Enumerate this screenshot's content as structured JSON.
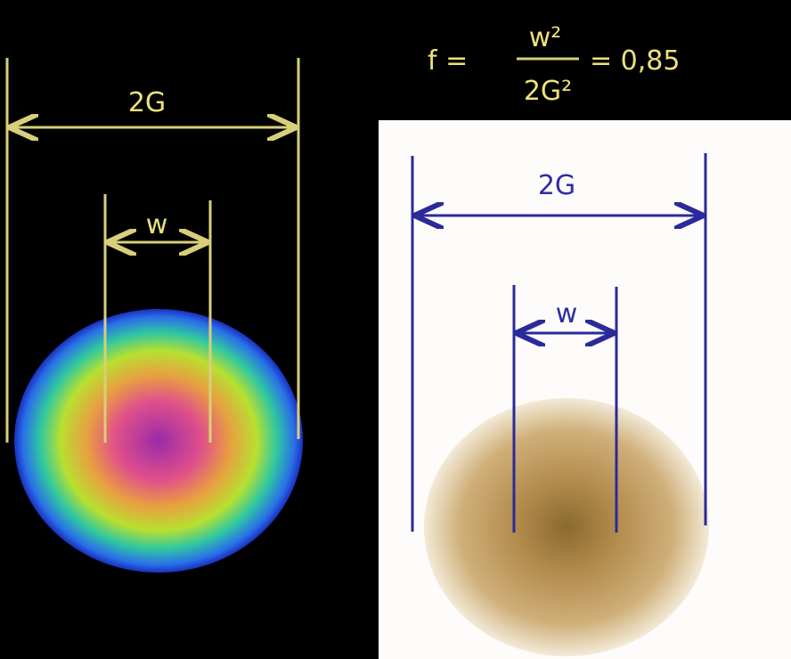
{
  "formula": {
    "lhs": "f =",
    "numerator": "w²",
    "denominator": "2G²",
    "rhs": "= 0,85"
  },
  "left_panel": {
    "width_label": "2G",
    "inner_label": "w"
  },
  "right_panel": {
    "width_label": "2G",
    "inner_label": "w"
  }
}
